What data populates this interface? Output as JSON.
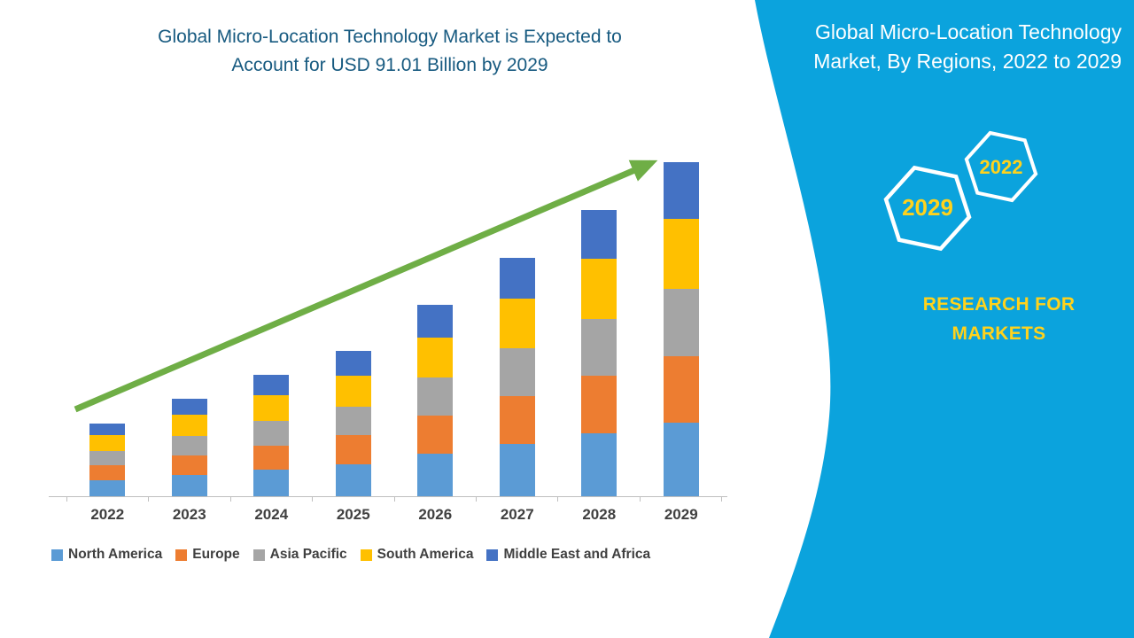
{
  "colors": {
    "panel_blue": "#0ba3dd",
    "title_teal": "#175a80",
    "arrow_green": "#6fae46",
    "highlight_yellow": "#ffd21c",
    "axis_gray": "#bfbfbf",
    "label_gray": "#404040"
  },
  "left": {
    "title_line1": "Global Micro-Location Technology Market is Expected to",
    "title_line2": "Account for USD 91.01 Billion by 2029"
  },
  "right_panel": {
    "title": "Global Micro-Location Technology Market, By Regions, 2022 to 2029",
    "hexagons": [
      {
        "label": "2029"
      },
      {
        "label": "2022"
      }
    ],
    "brand": "RESEARCH FOR MARKETS"
  },
  "chart_data": {
    "type": "bar",
    "stacked": true,
    "title": "Global Micro-Location Technology Market is Expected to Account for USD 91.01 Billion by 2029",
    "unit": "USD Billion",
    "xlabel": "",
    "ylabel": "",
    "categories": [
      "2022",
      "2023",
      "2024",
      "2025",
      "2026",
      "2027",
      "2028",
      "2029"
    ],
    "series": [
      {
        "name": "North America",
        "color": "#5b9bd5",
        "values": [
          4.4,
          5.9,
          7.3,
          8.7,
          11.5,
          14.3,
          17.2,
          20.0
        ]
      },
      {
        "name": "Europe",
        "color": "#ed7d31",
        "values": [
          4.0,
          5.3,
          6.6,
          7.9,
          10.4,
          13.0,
          15.6,
          18.2
        ]
      },
      {
        "name": "Asia Pacific",
        "color": "#a5a5a5",
        "values": [
          4.0,
          5.3,
          6.6,
          7.9,
          10.4,
          13.0,
          15.6,
          18.2
        ]
      },
      {
        "name": "South America",
        "color": "#ffc000",
        "values": [
          4.2,
          5.6,
          7.0,
          8.3,
          10.9,
          13.6,
          16.4,
          19.1
        ]
      },
      {
        "name": "Middle East and Africa",
        "color": "#4472c4",
        "values": [
          3.2,
          4.5,
          5.6,
          6.8,
          8.9,
          11.0,
          13.2,
          15.51
        ]
      }
    ],
    "totals": [
      19.8,
      26.6,
      33.1,
      39.6,
      52.1,
      64.9,
      78.0,
      91.01
    ],
    "ymax": 91.01,
    "grid": false,
    "legend_position": "bottom",
    "annotations": [
      "upward growth trend arrow from 2022 to 2029"
    ]
  }
}
